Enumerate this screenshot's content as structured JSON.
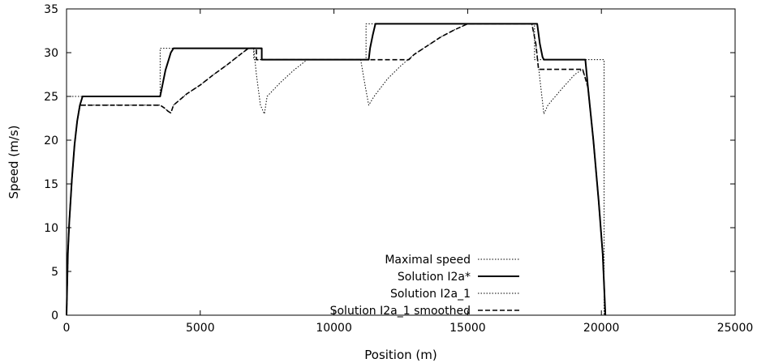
{
  "chart_data": {
    "type": "line",
    "xlabel": "Position (m)",
    "ylabel": "Speed (m/s)",
    "xlim": [
      0,
      25000
    ],
    "ylim": [
      0,
      35
    ],
    "xticks": [
      0,
      5000,
      10000,
      15000,
      20000,
      25000
    ],
    "yticks": [
      0,
      5,
      10,
      15,
      20,
      25,
      30,
      35
    ],
    "grid": false,
    "legend_position": "bottom-right",
    "series": [
      {
        "name": "Maximal speed",
        "style": "dotted",
        "color": "#000000",
        "points": [
          [
            0,
            25
          ],
          [
            3500,
            25
          ],
          [
            3500,
            30.5
          ],
          [
            7000,
            30.5
          ],
          [
            7000,
            29.2
          ],
          [
            11200,
            29.2
          ],
          [
            11200,
            33.3
          ],
          [
            17500,
            33.3
          ],
          [
            17500,
            29.2
          ],
          [
            20100,
            29.2
          ],
          [
            20100,
            0
          ]
        ]
      },
      {
        "name": "Solution I2a*",
        "style": "solid",
        "color": "#000000",
        "points": [
          [
            0,
            0
          ],
          [
            50,
            7
          ],
          [
            100,
            10.5
          ],
          [
            200,
            15.5
          ],
          [
            300,
            19.5
          ],
          [
            400,
            22.2
          ],
          [
            500,
            24
          ],
          [
            600,
            25
          ],
          [
            3500,
            25
          ],
          [
            3600,
            26.5
          ],
          [
            3700,
            28
          ],
          [
            3800,
            29
          ],
          [
            3900,
            30
          ],
          [
            4000,
            30.5
          ],
          [
            7300,
            30.5
          ],
          [
            7300,
            29.2
          ],
          [
            11300,
            29.2
          ],
          [
            11350,
            30.5
          ],
          [
            11450,
            32
          ],
          [
            11550,
            33.3
          ],
          [
            17600,
            33.3
          ],
          [
            17700,
            31
          ],
          [
            17800,
            29.5
          ],
          [
            17850,
            29.2
          ],
          [
            19400,
            29.2
          ],
          [
            19500,
            26
          ],
          [
            19700,
            20
          ],
          [
            19900,
            13
          ],
          [
            20050,
            7
          ],
          [
            20150,
            0
          ]
        ]
      },
      {
        "name": "Solution I2a_1",
        "style": "dotted",
        "color": "#000000",
        "points": [
          [
            0,
            0
          ],
          [
            50,
            7
          ],
          [
            100,
            10.5
          ],
          [
            200,
            15.5
          ],
          [
            300,
            19.5
          ],
          [
            400,
            22.2
          ],
          [
            500,
            24
          ],
          [
            3500,
            24
          ],
          [
            3650,
            23.7
          ],
          [
            3800,
            23.3
          ],
          [
            3900,
            23.1
          ],
          [
            4000,
            24
          ],
          [
            4500,
            25.3
          ],
          [
            5000,
            26.3
          ],
          [
            5500,
            27.5
          ],
          [
            6000,
            28.6
          ],
          [
            6500,
            29.8
          ],
          [
            6800,
            30.5
          ],
          [
            7000,
            30.5
          ],
          [
            7100,
            27.5
          ],
          [
            7250,
            24
          ],
          [
            7400,
            23
          ],
          [
            7500,
            25
          ],
          [
            8000,
            26.6
          ],
          [
            8500,
            28
          ],
          [
            9000,
            29.2
          ],
          [
            11000,
            29.2
          ],
          [
            11150,
            26.5
          ],
          [
            11300,
            24
          ],
          [
            11500,
            25
          ],
          [
            12000,
            27
          ],
          [
            12500,
            28.5
          ],
          [
            13000,
            29.8
          ],
          [
            13500,
            30.8
          ],
          [
            14000,
            31.8
          ],
          [
            14500,
            32.6
          ],
          [
            15000,
            33.3
          ],
          [
            17400,
            33.3
          ],
          [
            17550,
            31
          ],
          [
            17700,
            27
          ],
          [
            17850,
            23
          ],
          [
            18000,
            24
          ],
          [
            18500,
            25.8
          ],
          [
            19000,
            27.5
          ],
          [
            19300,
            28.1
          ],
          [
            19500,
            26
          ],
          [
            19700,
            20
          ],
          [
            19900,
            13
          ],
          [
            20050,
            7
          ],
          [
            20150,
            0
          ]
        ]
      },
      {
        "name": "Solution I2a_1 smoothed",
        "style": "dashed",
        "color": "#000000",
        "points": [
          [
            0,
            0
          ],
          [
            50,
            7
          ],
          [
            100,
            10.5
          ],
          [
            200,
            15.5
          ],
          [
            300,
            19.5
          ],
          [
            400,
            22.2
          ],
          [
            500,
            24
          ],
          [
            3500,
            24
          ],
          [
            3650,
            23.7
          ],
          [
            3800,
            23.3
          ],
          [
            3900,
            23.1
          ],
          [
            4000,
            24
          ],
          [
            4500,
            25.3
          ],
          [
            5000,
            26.3
          ],
          [
            5500,
            27.5
          ],
          [
            6000,
            28.6
          ],
          [
            6500,
            29.8
          ],
          [
            6800,
            30.5
          ],
          [
            7100,
            30.5
          ],
          [
            7100,
            29.2
          ],
          [
            12800,
            29.2
          ],
          [
            13000,
            29.8
          ],
          [
            13500,
            30.8
          ],
          [
            14000,
            31.8
          ],
          [
            14500,
            32.6
          ],
          [
            15000,
            33.3
          ],
          [
            17400,
            33.3
          ],
          [
            17550,
            31
          ],
          [
            17650,
            28.1
          ],
          [
            19300,
            28.1
          ],
          [
            19500,
            26
          ],
          [
            19700,
            20
          ],
          [
            19900,
            13
          ],
          [
            20050,
            7
          ],
          [
            20150,
            0
          ]
        ]
      }
    ]
  }
}
